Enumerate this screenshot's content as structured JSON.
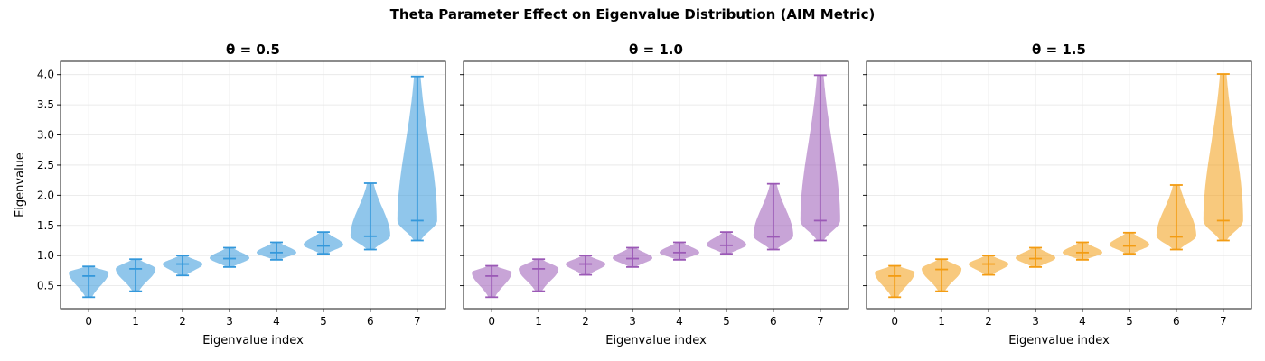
{
  "figure_title": "Theta Parameter Effect on Eigenvalue Distribution (AIM Metric)",
  "colors": {
    "panel_0": "#3498db",
    "panel_1": "#9b59b6",
    "panel_2": "#f39c12",
    "grid": "#e6e6e6",
    "axes": "#000000"
  },
  "chart_data": [
    {
      "type": "violin",
      "title": "θ = 0.5",
      "xlabel": "Eigenvalue index",
      "ylabel": "Eigenvalue",
      "categories": [
        "0",
        "1",
        "2",
        "3",
        "4",
        "5",
        "6",
        "7"
      ],
      "xlim": [
        -0.6,
        7.6
      ],
      "ylim": [
        0.12,
        4.22
      ],
      "yticks": [
        "0.5",
        "1.0",
        "1.5",
        "2.0",
        "2.5",
        "3.0",
        "3.5",
        "4.0"
      ],
      "grid": true,
      "violins": [
        {
          "index": 0,
          "min": 0.31,
          "max": 0.82,
          "median": 0.66,
          "peak": 0.72,
          "spread": 0.2
        },
        {
          "index": 1,
          "min": 0.41,
          "max": 0.94,
          "median": 0.78,
          "peak": 0.78,
          "spread": 0.1
        },
        {
          "index": 2,
          "min": 0.67,
          "max": 1.0,
          "median": 0.86,
          "peak": 0.86,
          "spread": 0.09
        },
        {
          "index": 3,
          "min": 0.81,
          "max": 1.13,
          "median": 0.95,
          "peak": 0.96,
          "spread": 0.08
        },
        {
          "index": 4,
          "min": 0.93,
          "max": 1.22,
          "median": 1.05,
          "peak": 1.05,
          "spread": 0.08
        },
        {
          "index": 5,
          "min": 1.03,
          "max": 1.39,
          "median": 1.16,
          "peak": 1.18,
          "spread": 0.1
        },
        {
          "index": 6,
          "min": 1.1,
          "max": 2.2,
          "median": 1.32,
          "peak": 1.33,
          "spread": 0.13
        },
        {
          "index": 7,
          "min": 1.25,
          "max": 3.97,
          "median": 1.58,
          "peak": 1.58,
          "spread": 0.22
        }
      ]
    },
    {
      "type": "violin",
      "title": "θ = 1.0",
      "xlabel": "Eigenvalue index",
      "ylabel": "",
      "categories": [
        "0",
        "1",
        "2",
        "3",
        "4",
        "5",
        "6",
        "7"
      ],
      "xlim": [
        -0.6,
        7.6
      ],
      "ylim": [
        0.12,
        4.22
      ],
      "grid": true,
      "violins": [
        {
          "index": 0,
          "min": 0.31,
          "max": 0.83,
          "median": 0.66,
          "peak": 0.72,
          "spread": 0.2
        },
        {
          "index": 1,
          "min": 0.41,
          "max": 0.94,
          "median": 0.78,
          "peak": 0.78,
          "spread": 0.1
        },
        {
          "index": 2,
          "min": 0.68,
          "max": 1.0,
          "median": 0.86,
          "peak": 0.86,
          "spread": 0.09
        },
        {
          "index": 3,
          "min": 0.81,
          "max": 1.13,
          "median": 0.95,
          "peak": 0.96,
          "spread": 0.08
        },
        {
          "index": 4,
          "min": 0.93,
          "max": 1.22,
          "median": 1.05,
          "peak": 1.05,
          "spread": 0.08
        },
        {
          "index": 5,
          "min": 1.03,
          "max": 1.39,
          "median": 1.17,
          "peak": 1.18,
          "spread": 0.1
        },
        {
          "index": 6,
          "min": 1.1,
          "max": 2.19,
          "median": 1.31,
          "peak": 1.33,
          "spread": 0.13
        },
        {
          "index": 7,
          "min": 1.25,
          "max": 3.99,
          "median": 1.58,
          "peak": 1.58,
          "spread": 0.22
        }
      ]
    },
    {
      "type": "violin",
      "title": "θ = 1.5",
      "xlabel": "Eigenvalue index",
      "ylabel": "",
      "categories": [
        "0",
        "1",
        "2",
        "3",
        "4",
        "5",
        "6",
        "7"
      ],
      "xlim": [
        -0.6,
        7.6
      ],
      "ylim": [
        0.12,
        4.22
      ],
      "grid": true,
      "violins": [
        {
          "index": 0,
          "min": 0.31,
          "max": 0.83,
          "median": 0.66,
          "peak": 0.72,
          "spread": 0.2
        },
        {
          "index": 1,
          "min": 0.41,
          "max": 0.94,
          "median": 0.77,
          "peak": 0.78,
          "spread": 0.1
        },
        {
          "index": 2,
          "min": 0.68,
          "max": 1.0,
          "median": 0.86,
          "peak": 0.86,
          "spread": 0.09
        },
        {
          "index": 3,
          "min": 0.81,
          "max": 1.13,
          "median": 0.95,
          "peak": 0.96,
          "spread": 0.08
        },
        {
          "index": 4,
          "min": 0.93,
          "max": 1.22,
          "median": 1.05,
          "peak": 1.05,
          "spread": 0.08
        },
        {
          "index": 5,
          "min": 1.03,
          "max": 1.38,
          "median": 1.16,
          "peak": 1.18,
          "spread": 0.1
        },
        {
          "index": 6,
          "min": 1.1,
          "max": 2.17,
          "median": 1.31,
          "peak": 1.33,
          "spread": 0.13
        },
        {
          "index": 7,
          "min": 1.25,
          "max": 4.01,
          "median": 1.58,
          "peak": 1.58,
          "spread": 0.22
        }
      ]
    }
  ]
}
